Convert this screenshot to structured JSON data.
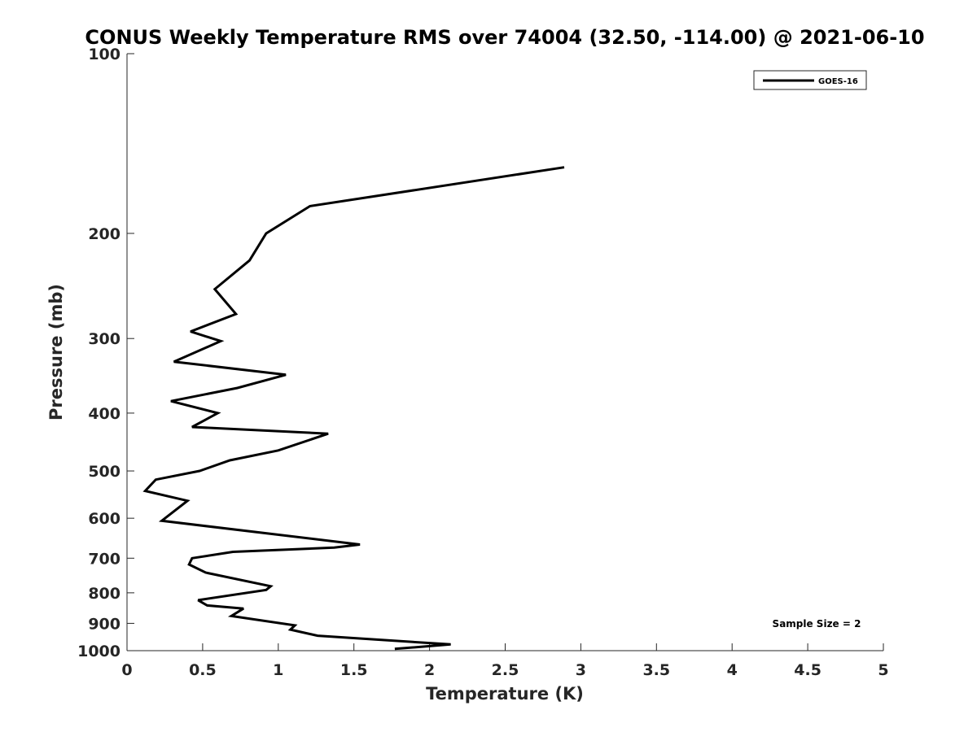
{
  "chart_data": {
    "type": "line",
    "title": "CONUS Weekly Temperature RMS over 74004 (32.50, -114.00) @ 2021-06-10",
    "xlabel": "Temperature (K)",
    "ylabel": "Pressure (mb)",
    "xlim": [
      0,
      5
    ],
    "ylim": [
      100,
      1000
    ],
    "y_scale": "log",
    "y_reversed": true,
    "x_ticks": [
      "0",
      "0.5",
      "1",
      "1.5",
      "2",
      "2.5",
      "3",
      "3.5",
      "4",
      "4.5",
      "5"
    ],
    "y_ticks": [
      "100",
      "200",
      "300",
      "400",
      "500",
      "600",
      "700",
      "800",
      "900",
      "1000"
    ],
    "grid": false,
    "legend_position": "top-right",
    "annotation": "Sample Size = 2",
    "series": [
      {
        "name": "GOES-16",
        "color": "#000000",
        "points": [
          [
            2.89,
            155
          ],
          [
            1.21,
            180
          ],
          [
            0.92,
            200
          ],
          [
            0.81,
            222
          ],
          [
            0.58,
            248
          ],
          [
            0.72,
            273
          ],
          [
            0.42,
            292
          ],
          [
            0.62,
            303
          ],
          [
            0.31,
            328
          ],
          [
            1.05,
            345
          ],
          [
            0.73,
            363
          ],
          [
            0.29,
            382
          ],
          [
            0.6,
            400
          ],
          [
            0.43,
            422
          ],
          [
            1.33,
            433
          ],
          [
            1.0,
            462
          ],
          [
            0.68,
            480
          ],
          [
            0.48,
            500
          ],
          [
            0.19,
            517
          ],
          [
            0.12,
            540
          ],
          [
            0.4,
            561
          ],
          [
            0.23,
            606
          ],
          [
            1.54,
            664
          ],
          [
            1.37,
            672
          ],
          [
            0.7,
            683
          ],
          [
            0.43,
            700
          ],
          [
            0.41,
            717
          ],
          [
            0.52,
            740
          ],
          [
            0.95,
            780
          ],
          [
            0.92,
            791
          ],
          [
            0.47,
            823
          ],
          [
            0.53,
            840
          ],
          [
            0.77,
            850
          ],
          [
            0.69,
            875
          ],
          [
            1.11,
            907
          ],
          [
            1.08,
            922
          ],
          [
            1.26,
            944
          ],
          [
            2.14,
            976
          ],
          [
            1.77,
            993
          ]
        ]
      }
    ]
  }
}
